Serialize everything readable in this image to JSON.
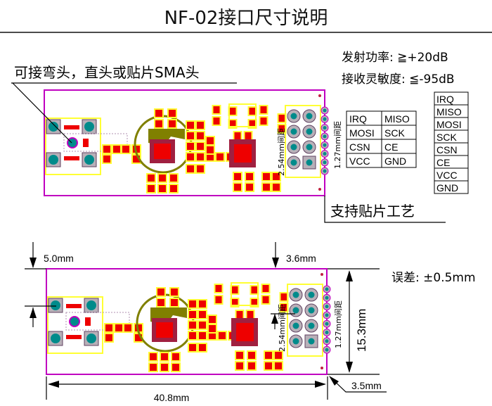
{
  "title": "NF-02接口尺寸说明",
  "top": {
    "callout_sma": "可接弯头，直头或贴片SMA头",
    "tx_power": "发射功率: ≧+20dB",
    "rx_sensitivity": "接收灵敏度: ≦-95dB",
    "pitch_254": "2.54mm间距",
    "pitch_127": "1.27mm间距",
    "callout_smd": "支持贴片工艺",
    "pin_table_2col": [
      [
        "IRQ",
        "MISO"
      ],
      [
        "MOSI",
        "SCK"
      ],
      [
        "CSN",
        "CE"
      ],
      [
        "VCC",
        "GND"
      ]
    ],
    "pin_table_1col": [
      "IRQ",
      "MISO",
      "MOSI",
      "SCK",
      "CSN",
      "CE",
      "VCC",
      "GND"
    ]
  },
  "bottom": {
    "dim_5_0": "5.0mm",
    "dim_3_6": "3.6mm",
    "tolerance": "误差: ±0.5mm",
    "dim_height": "15.3mm",
    "dim_width": "40.8mm",
    "dim_3_5": "3.5mm",
    "pitch_254": "2.54mm间距",
    "pitch_127": "1.27mm间距"
  },
  "colors": {
    "board_outline": "#c000c0",
    "pad": "#ee0000",
    "silk": "#ffff33",
    "pin": "#008b8b",
    "antenna": "#808000"
  }
}
